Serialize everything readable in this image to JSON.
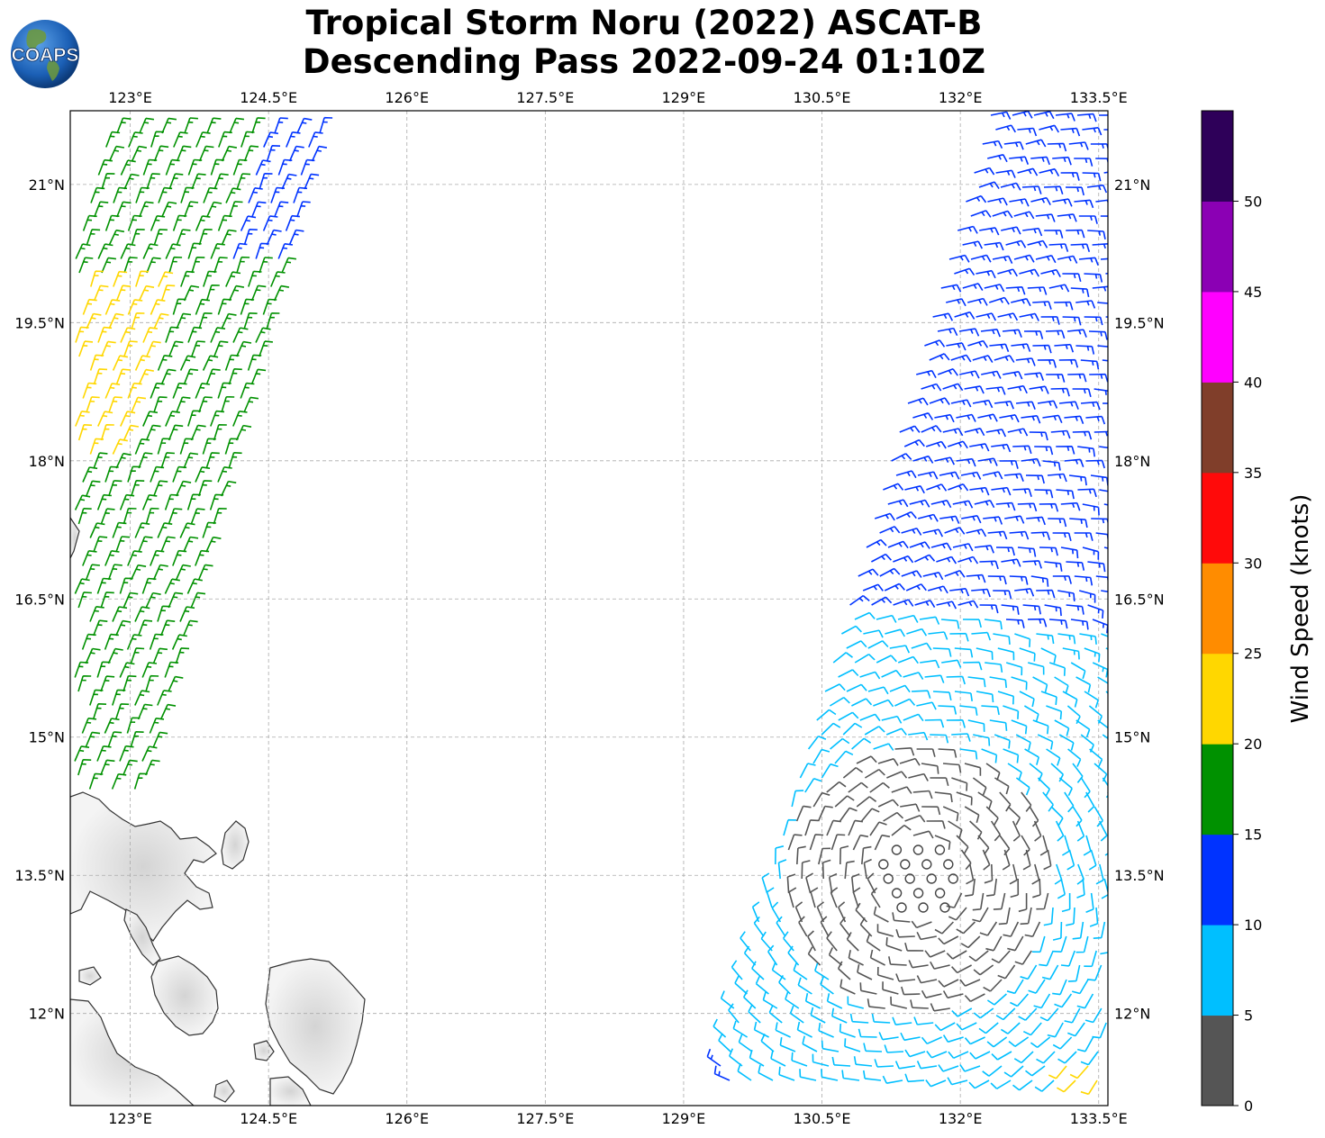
{
  "title": {
    "line1": "Tropical Storm Noru (2022) ASCAT-B",
    "line2": "Descending Pass 2022-09-24 01:10Z"
  },
  "logo": {
    "text": "COAPS"
  },
  "map": {
    "lon_range": [
      122.35,
      133.6
    ],
    "lat_range": [
      11.0,
      21.8
    ],
    "lon_ticks": [
      "123°E",
      "124.5°E",
      "126°E",
      "127.5°E",
      "129°E",
      "130.5°E",
      "132°E",
      "133.5°E"
    ],
    "lon_tick_values": [
      123,
      124.5,
      126,
      127.5,
      129,
      130.5,
      132,
      133.5
    ],
    "lat_ticks": [
      "21°N",
      "19.5°N",
      "18°N",
      "16.5°N",
      "15°N",
      "13.5°N",
      "12°N"
    ],
    "lat_tick_values": [
      21,
      19.5,
      18,
      16.5,
      15,
      13.5,
      12
    ]
  },
  "colorbar": {
    "label": "Wind Speed (knots)",
    "ticks": [
      "0",
      "5",
      "10",
      "15",
      "20",
      "25",
      "30",
      "35",
      "40",
      "45",
      "50"
    ],
    "colors": [
      "#555555",
      "#00bfff",
      "#0033ff",
      "#009100",
      "#ffd700",
      "#ff8c00",
      "#ff0a0a",
      "#803e2a",
      "#ff00ff",
      "#8b00b4",
      "#2e0059"
    ]
  }
}
